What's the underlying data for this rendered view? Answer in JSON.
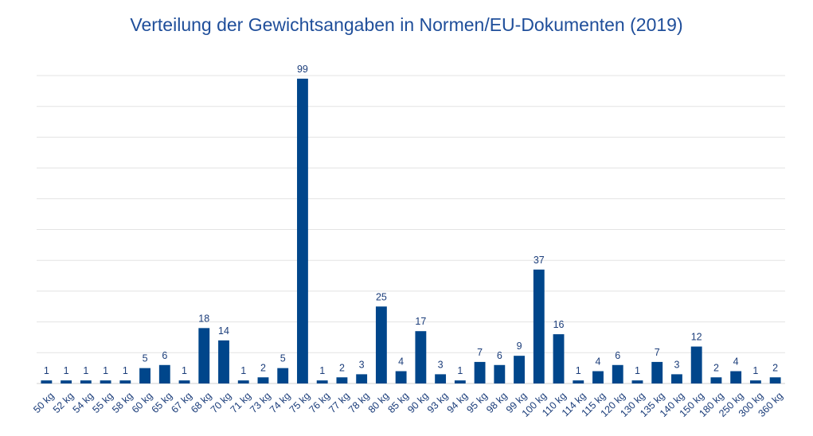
{
  "chart_data": {
    "type": "bar",
    "title": "Verteilung der Gewichtsangaben in Normen/EU-Dokumenten (2019)",
    "xlabel": "",
    "ylabel": "",
    "ylim": [
      0,
      100
    ],
    "grid": true,
    "legend": "none",
    "bar_color": "#00468b",
    "categories": [
      "50 kg",
      "52 kg",
      "54 kg",
      "55 kg",
      "58 kg",
      "60 kg",
      "65 kg",
      "67 kg",
      "68 kg",
      "70 kg",
      "71 kg",
      "73 kg",
      "74 kg",
      "75 kg",
      "76 kg",
      "77 kg",
      "78 kg",
      "80 kg",
      "85 kg",
      "90 kg",
      "93 kg",
      "94 kg",
      "95 kg",
      "98 kg",
      "99 kg",
      "100 kg",
      "110 kg",
      "114 kg",
      "115 kg",
      "120 kg",
      "130 kg",
      "135 kg",
      "140 kg",
      "150 kg",
      "180 kg",
      "250 kg",
      "300 kg",
      "360 kg"
    ],
    "values": [
      1,
      1,
      1,
      1,
      1,
      5,
      6,
      1,
      18,
      14,
      1,
      2,
      5,
      99,
      1,
      2,
      3,
      25,
      4,
      17,
      3,
      1,
      7,
      6,
      9,
      37,
      16,
      1,
      4,
      6,
      1,
      7,
      3,
      12,
      2,
      4,
      1,
      2
    ]
  }
}
